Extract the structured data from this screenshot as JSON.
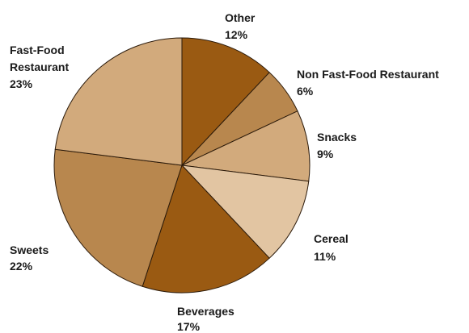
{
  "chart_data": {
    "type": "pie",
    "title": "",
    "slices": [
      {
        "label": "Other",
        "value": 12,
        "pct_label": "12%",
        "color": "#9a5a12"
      },
      {
        "label": "Non Fast-Food Restaurant",
        "value": 6,
        "pct_label": "6%",
        "color": "#b8874e"
      },
      {
        "label": "Snacks",
        "value": 9,
        "pct_label": "9%",
        "color": "#d2aa7c"
      },
      {
        "label": "Cereal",
        "value": 11,
        "pct_label": "11%",
        "color": "#e2c5a2"
      },
      {
        "label": "Beverages",
        "value": 17,
        "pct_label": "17%",
        "color": "#9a5a12"
      },
      {
        "label": "Sweets",
        "value": 22,
        "pct_label": "22%",
        "color": "#b8874e"
      },
      {
        "label": "Fast-Food Restaurant",
        "value": 23,
        "pct_label": "23%",
        "color": "#d2aa7c"
      }
    ],
    "start_angle_deg": 0,
    "direction": "clockwise"
  }
}
